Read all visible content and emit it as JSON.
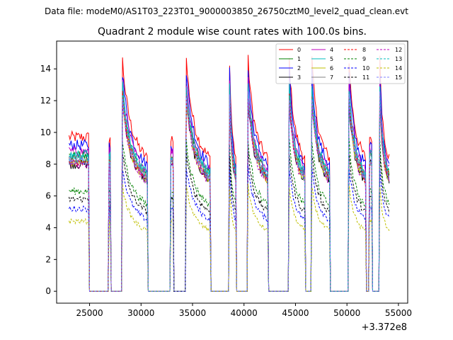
{
  "chart_data": {
    "type": "line",
    "suptitle": "Data file: modeM0/AS1T03_223T01_9000003850_26750cztM0_level2_quad_clean.evt",
    "title": "Quadrant 2 module wise count rates with 100.0s bins.",
    "xlabel": "",
    "ylabel": "",
    "x_offset_label": "+3.372e8",
    "xlim": [
      21800,
      55900
    ],
    "ylim": [
      -0.75,
      15.75
    ],
    "xticks": [
      25000,
      30000,
      35000,
      40000,
      45000,
      50000,
      55000
    ],
    "xtick_labels": [
      "25000",
      "30000",
      "35000",
      "40000",
      "45000",
      "50000",
      "55000"
    ],
    "yticks": [
      0,
      2,
      4,
      6,
      8,
      10,
      12,
      14
    ],
    "ytick_labels": [
      "0",
      "2",
      "4",
      "6",
      "8",
      "10",
      "12",
      "14"
    ],
    "legend_position": "top-right",
    "time_profile": {
      "on_intervals": [
        [
          23000,
          24950
        ],
        [
          26900,
          27050
        ],
        [
          28200,
          30650
        ],
        [
          32900,
          33150
        ],
        [
          34400,
          36750
        ],
        [
          38600,
          39250
        ],
        [
          40400,
          42350
        ],
        [
          44400,
          45950
        ],
        [
          46600,
          48350
        ],
        [
          50200,
          51850
        ],
        [
          52200,
          52450
        ],
        [
          53200,
          54150
        ]
      ],
      "spike_peak": 2.0,
      "orbit_peak": 1.5
    },
    "series": [
      {
        "name": "0",
        "color": "#ff0000",
        "style": "solid",
        "level": 9.7
      },
      {
        "name": "1",
        "color": "#008000",
        "style": "solid",
        "level": 8.5
      },
      {
        "name": "2",
        "color": "#0000ff",
        "style": "solid",
        "level": 9.2
      },
      {
        "name": "3",
        "color": "#000000",
        "style": "solid",
        "level": 8.0
      },
      {
        "name": "4",
        "color": "#bf00bf",
        "style": "solid",
        "level": 8.8
      },
      {
        "name": "5",
        "color": "#00bfbf",
        "style": "solid",
        "level": 8.6
      },
      {
        "name": "6",
        "color": "#bfbf00",
        "style": "solid",
        "level": 8.1
      },
      {
        "name": "7",
        "color": "#808080",
        "style": "solid",
        "level": 8.3
      },
      {
        "name": "8",
        "color": "#ff0000",
        "style": "dashed",
        "level": 8.2
      },
      {
        "name": "9",
        "color": "#008000",
        "style": "dashed",
        "level": 6.3
      },
      {
        "name": "10",
        "color": "#0000ff",
        "style": "dashed",
        "level": 5.2
      },
      {
        "name": "11",
        "color": "#000000",
        "style": "dashed",
        "level": 5.8
      },
      {
        "name": "12",
        "color": "#bf00bf",
        "style": "dashed",
        "level": 8.0
      },
      {
        "name": "13",
        "color": "#00bfbf",
        "style": "dashed",
        "level": 8.4
      },
      {
        "name": "14",
        "color": "#bfbf00",
        "style": "dashed",
        "level": 4.4
      },
      {
        "name": "15",
        "color": "#8080ff",
        "style": "dashed",
        "level": 8.2
      }
    ]
  }
}
